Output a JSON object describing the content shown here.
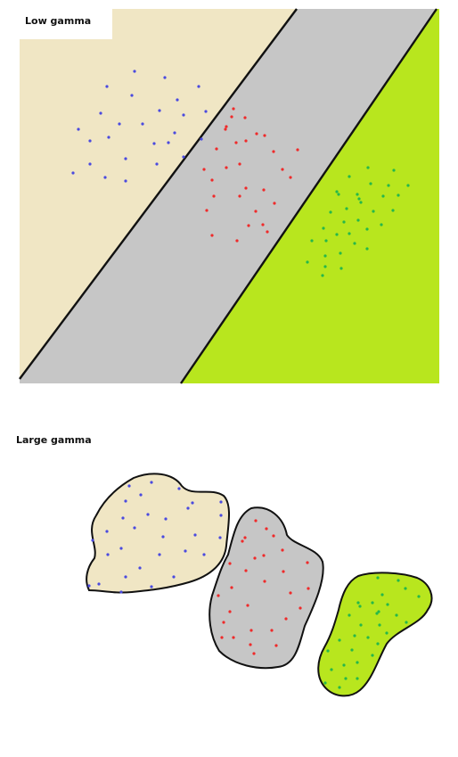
{
  "panels": {
    "low": {
      "label": "Low gamma"
    },
    "large": {
      "label": "Large gamma"
    }
  },
  "colors": {
    "class_a_region": "#f0e6c4",
    "class_b_region": "#c6c6c6",
    "class_c_region": "#b8e61e",
    "class_a_points": "#4a4adf",
    "class_b_points": "#ef2a2a",
    "class_c_points": "#25b84a",
    "boundary": "#111111",
    "label_box": "#ffffff"
  }
}
